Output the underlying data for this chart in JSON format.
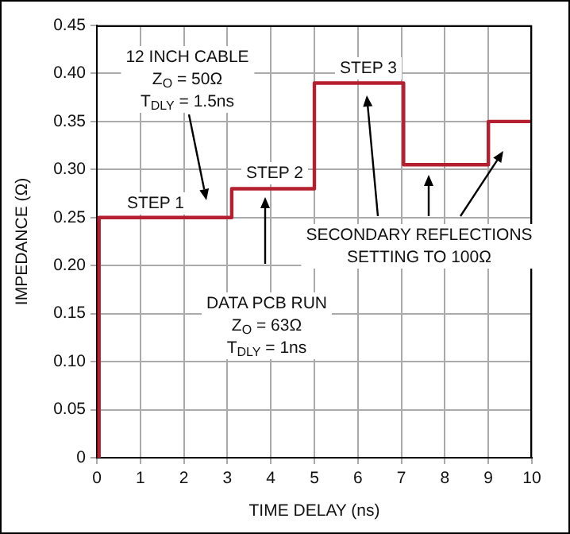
{
  "chart_data": {
    "type": "step",
    "xlabel": "TIME DELAY (ns)",
    "ylabel": "IMPEDANCE (Ω)",
    "x": [
      0.05,
      0.05,
      3.1,
      5,
      7.05,
      9,
      10
    ],
    "series": [
      {
        "color": "#b52030",
        "values": [
          0,
          0.25,
          0.28,
          0.39,
          0.305,
          0.35,
          0.35
        ]
      }
    ],
    "xlim": [
      0,
      10
    ],
    "xticks": [
      0,
      1,
      2,
      3,
      4,
      5,
      6,
      7,
      8,
      9,
      10
    ],
    "ylim": [
      0,
      0.45
    ],
    "yticks": [
      0,
      {
        "value": 0.05,
        "label": "0.05"
      },
      {
        "value": 0.1,
        "label": "0.10"
      },
      {
        "value": 0.15,
        "label": "0.15"
      },
      {
        "value": 0.2,
        "label": "0.20"
      },
      {
        "value": 0.25,
        "label": "0.25"
      },
      {
        "value": 0.3,
        "label": "0.30"
      },
      {
        "value": 0.35,
        "label": "0.35"
      },
      {
        "value": 0.4,
        "label": "0.40"
      },
      {
        "value": 0.45,
        "label": "0.45"
      }
    ],
    "grid": true,
    "legend": false,
    "marker": "none",
    "line_style": "solid",
    "annotations": [
      "12 INCH CABLE\nZ$_{O}$ = 50Ω\nT$_{DLY}$ = 1.5ns",
      "STEP 1",
      "STEP 2",
      "STEP 3",
      "DATA PCB RUN\nZ$_{O}$ = 63Ω\nT$_{DLY}$ = 1ns",
      "SECONDARY REFLECTIONS\nSETTING TO 100Ω"
    ]
  }
}
